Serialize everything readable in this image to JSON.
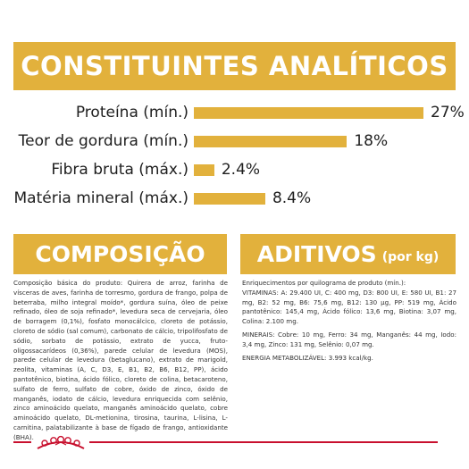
{
  "header": {
    "title": "CONSTITUINTES ANALÍTICOS"
  },
  "constituents": [
    {
      "label": "Proteína (mín.)",
      "value": "27%",
      "percent": 27
    },
    {
      "label": "Teor de gordura (mín.)",
      "value": "18%",
      "percent": 18
    },
    {
      "label": "Fibra bruta (máx.)",
      "value": "2.4%",
      "percent": 2.4
    },
    {
      "label": "Matéria mineral (máx.)",
      "value": "8.4%",
      "percent": 8.4
    }
  ],
  "composition": {
    "title": "COMPOSIÇÃO",
    "text": "Composição básica do produto: Quirera de arroz, farinha de vísceras de aves, farinha de torresmo, gordura de frango, polpa de beterraba, milho integral moído*, gordura suína, óleo de peixe refinado, óleo de soja refinado*, levedura seca de cervejaria, óleo de borragem (0,1%), fosfato monocálcico, cloreto de potássio, cloreto de sódio (sal comum), carbonato de cálcio, tripolifosfato de sódio, sorbato de potássio, extrato de yucca, fruto-oligossacarídeos (0,36%), parede celular de levedura (MOS), parede celular de levedura (betaglucano), extrato de marigold, zeolita, vitaminas (A, C, D3, E, B1, B2, B6, B12, PP), ácido pantotênico, biotina, ácido fólico, cloreto de colina, betacaroteno, sulfato de ferro, sulfato de cobre, óxido de zinco, óxido de manganês, iodato de cálcio, levedura enriquecida com selênio, zinco aminoácido quelato, manganês aminoácido quelato, cobre aminoácido quelato, DL-metionina, tirosina, taurina, L-lisina, L-carnitina, palatabilizante à base de fígado de frango, antioxidante (BHA)."
  },
  "additives": {
    "title": "ADITIVOS",
    "subtitle": "(por kg)",
    "heading": "Enriquecimentos por quilograma de produto (mín.):",
    "vitamins": "VITAMINAS: A: 29.400 UI, C: 400 mg, D3: 800 UI, E: 580 UI, B1: 27 mg, B2: 52 mg, B6: 75,6 mg, B12: 130 µg, PP: 519 mg, Ácido pantotênico: 145,4 mg, Ácido fólico: 13,6 mg, Biotina: 3,07 mg, Colina: 2.100 mg.",
    "minerals": "MINERAIS: Cobre: 10 mg, Ferro: 34 mg, Manganês: 44 mg, Iodo: 3,4 mg, Zinco: 131 mg, Selênio: 0,07 mg.",
    "energy": "ENERGIA METABOLIZÁVEL: 3.993 kcal/kg."
  },
  "colors": {
    "accent": "#e2b13c",
    "brand_red": "#c8102e"
  },
  "icons": {
    "logo": "royal-canin-crown-logo"
  }
}
